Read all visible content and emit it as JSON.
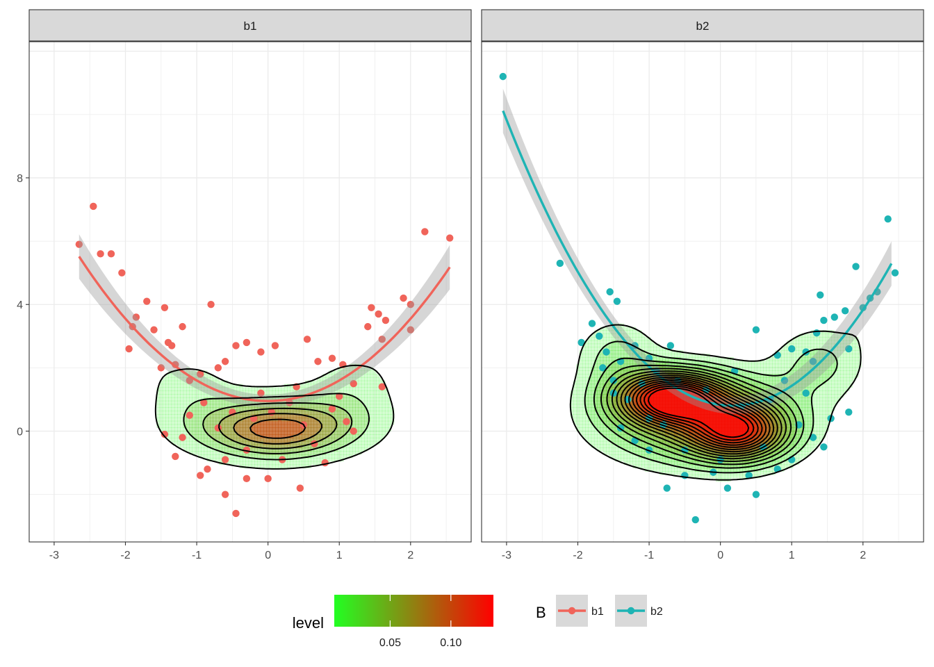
{
  "chart_data": {
    "type": "scatter",
    "subtype": "faceted scatter with filled 2D density contours and quadratic smooth fits",
    "title": "",
    "xlabel": "",
    "ylabel": "",
    "xlim": [
      -3.35,
      2.85
    ],
    "ylim": [
      -3.5,
      12.3
    ],
    "x_ticks": [
      "-3",
      "-2",
      "-1",
      "0",
      "1",
      "2"
    ],
    "x_tick_values": [
      -3,
      -2,
      -1,
      0,
      1,
      2
    ],
    "y_ticks": [
      "0",
      "4",
      "8"
    ],
    "y_tick_values": [
      0,
      4,
      8
    ],
    "grid": true,
    "legend_placement": "bottom",
    "fill_legend": {
      "title": "level",
      "colors": [
        "#22ff22",
        "#ff0000"
      ],
      "range": [
        0.004,
        0.135
      ],
      "labels": [
        "0.05",
        "0.10"
      ],
      "label_values": [
        0.05,
        0.1
      ]
    },
    "color_legend": {
      "title": "B",
      "entries": [
        {
          "label": "b1",
          "color": "#F0645A"
        },
        {
          "label": "b2",
          "color": "#1EB4B4"
        }
      ]
    },
    "panels": [
      {
        "strip": "b1",
        "color": "#F0645A",
        "fit": {
          "x_range": [
            -2.65,
            2.55
          ],
          "coef": [
            0.65,
            0,
            0.95
          ],
          "se_halfwidth": [
            0.2,
            0.7
          ]
        },
        "density_peaks": [
          {
            "x": 0.15,
            "y": -0.05,
            "sx": 0.55,
            "sy": 0.55,
            "w": 0.06
          },
          {
            "x": -0.4,
            "y": 0.2,
            "sx": 0.6,
            "sy": 0.6,
            "w": 0.045
          },
          {
            "x": 0.75,
            "y": 0.3,
            "sx": 0.55,
            "sy": 0.6,
            "w": 0.04
          },
          {
            "x": -1.1,
            "y": 1.3,
            "sx": 0.4,
            "sy": 0.7,
            "w": 0.015
          },
          {
            "x": 1.2,
            "y": 1.4,
            "sx": 0.4,
            "sy": 0.7,
            "w": 0.015
          },
          {
            "x": -1.7,
            "y": 2.8,
            "sx": 0.22,
            "sy": 0.7,
            "w": 0.008
          },
          {
            "x": 1.7,
            "y": 3.0,
            "sx": 0.22,
            "sy": 0.6,
            "w": 0.008
          }
        ],
        "contour_levels": [
          0.01,
          0.027,
          0.044,
          0.061,
          0.078,
          0.095,
          0.112,
          0.129
        ],
        "points": [
          [
            -2.65,
            5.9
          ],
          [
            -2.45,
            7.1
          ],
          [
            -2.35,
            5.6
          ],
          [
            -2.2,
            5.6
          ],
          [
            -2.05,
            5.0
          ],
          [
            -1.95,
            2.6
          ],
          [
            -1.9,
            3.3
          ],
          [
            -1.85,
            3.6
          ],
          [
            -1.7,
            4.1
          ],
          [
            -1.6,
            3.2
          ],
          [
            -1.45,
            3.9
          ],
          [
            -1.4,
            2.8
          ],
          [
            -1.35,
            2.7
          ],
          [
            -1.2,
            3.3
          ],
          [
            -1.5,
            2.0
          ],
          [
            -1.3,
            2.1
          ],
          [
            -1.1,
            1.6
          ],
          [
            -0.95,
            1.8
          ],
          [
            -0.8,
            4.0
          ],
          [
            -0.7,
            2.0
          ],
          [
            -0.6,
            2.2
          ],
          [
            -0.45,
            2.7
          ],
          [
            -0.3,
            2.8
          ],
          [
            -0.1,
            2.5
          ],
          [
            0.1,
            2.7
          ],
          [
            0.55,
            2.9
          ],
          [
            0.7,
            2.2
          ],
          [
            0.9,
            2.3
          ],
          [
            1.05,
            2.1
          ],
          [
            1.2,
            1.5
          ],
          [
            1.4,
            3.3
          ],
          [
            1.45,
            3.9
          ],
          [
            1.55,
            3.7
          ],
          [
            1.6,
            2.9
          ],
          [
            1.65,
            3.5
          ],
          [
            1.6,
            1.4
          ],
          [
            1.9,
            4.2
          ],
          [
            2.0,
            4.0
          ],
          [
            2.0,
            3.2
          ],
          [
            2.2,
            6.3
          ],
          [
            2.55,
            6.1
          ],
          [
            -1.45,
            -0.1
          ],
          [
            -1.3,
            -0.8
          ],
          [
            -0.95,
            -1.4
          ],
          [
            -0.85,
            -1.2
          ],
          [
            -0.6,
            -2.0
          ],
          [
            -0.45,
            -2.6
          ],
          [
            -0.3,
            -1.5
          ],
          [
            0.0,
            -1.5
          ],
          [
            0.45,
            -1.8
          ],
          [
            0.8,
            -1.0
          ],
          [
            -0.7,
            0.1
          ],
          [
            -0.5,
            0.6
          ],
          [
            -0.2,
            0.4
          ],
          [
            0.3,
            0.9
          ],
          [
            0.5,
            0.2
          ],
          [
            0.9,
            0.7
          ],
          [
            1.1,
            0.3
          ],
          [
            -1.1,
            0.5
          ],
          [
            -0.3,
            -0.6
          ],
          [
            0.2,
            -0.9
          ],
          [
            0.65,
            -0.4
          ],
          [
            -0.9,
            0.9
          ],
          [
            -0.1,
            1.2
          ],
          [
            0.4,
            1.4
          ],
          [
            1.0,
            1.1
          ],
          [
            -0.6,
            -0.9
          ],
          [
            0.05,
            0.6
          ],
          [
            -1.2,
            -0.2
          ],
          [
            1.2,
            0.0
          ]
        ]
      },
      {
        "strip": "b2",
        "color": "#1EB4B4",
        "fit": {
          "x_range": [
            -3.05,
            2.4
          ],
          "coef": [
            0.9,
            -0.3,
            0.83
          ],
          "se_halfwidth": [
            0.25,
            0.7
          ]
        },
        "density_peaks": [
          {
            "x": -0.7,
            "y": 1.05,
            "sx": 0.5,
            "sy": 0.55,
            "w": 0.11
          },
          {
            "x": 0.25,
            "y": 0.0,
            "sx": 0.45,
            "sy": 0.6,
            "w": 0.09
          },
          {
            "x": -0.3,
            "y": 0.4,
            "sx": 0.9,
            "sy": 0.95,
            "w": 0.06
          },
          {
            "x": -1.45,
            "y": 2.4,
            "sx": 0.4,
            "sy": 0.8,
            "w": 0.02
          },
          {
            "x": 1.4,
            "y": 2.2,
            "sx": 0.45,
            "sy": 0.8,
            "w": 0.02
          },
          {
            "x": 2.05,
            "y": 3.8,
            "sx": 0.22,
            "sy": 0.7,
            "w": 0.008
          },
          {
            "x": -2.15,
            "y": 4.85,
            "sx": 0.09,
            "sy": 0.18,
            "w": 0.004
          }
        ],
        "contour_levels": [
          0.01,
          0.0185,
          0.027,
          0.0355,
          0.044,
          0.0525,
          0.061,
          0.0695,
          0.078,
          0.0865,
          0.095,
          0.1035,
          0.112,
          0.1205,
          0.129
        ],
        "points": [
          [
            -3.05,
            11.2
          ],
          [
            -2.25,
            5.3
          ],
          [
            -1.95,
            2.8
          ],
          [
            -1.55,
            4.4
          ],
          [
            -1.45,
            4.1
          ],
          [
            -1.8,
            3.4
          ],
          [
            -1.7,
            3.0
          ],
          [
            -1.6,
            2.5
          ],
          [
            -1.4,
            2.2
          ],
          [
            -1.2,
            2.7
          ],
          [
            -1.0,
            2.3
          ],
          [
            -0.7,
            2.7
          ],
          [
            -1.65,
            2.0
          ],
          [
            -1.5,
            1.6
          ],
          [
            -0.9,
            1.9
          ],
          [
            0.5,
            3.2
          ],
          [
            0.8,
            2.4
          ],
          [
            1.0,
            2.6
          ],
          [
            1.2,
            2.5
          ],
          [
            1.3,
            2.2
          ],
          [
            1.35,
            3.1
          ],
          [
            1.45,
            3.5
          ],
          [
            1.4,
            4.3
          ],
          [
            1.6,
            3.6
          ],
          [
            1.75,
            3.8
          ],
          [
            1.8,
            2.6
          ],
          [
            1.9,
            5.2
          ],
          [
            2.0,
            3.9
          ],
          [
            2.1,
            4.2
          ],
          [
            2.2,
            4.4
          ],
          [
            2.35,
            6.7
          ],
          [
            2.45,
            5.0
          ],
          [
            -0.75,
            -1.8
          ],
          [
            -0.35,
            -2.8
          ],
          [
            -0.5,
            -1.4
          ],
          [
            0.1,
            -1.8
          ],
          [
            0.5,
            -2.0
          ],
          [
            0.8,
            -1.2
          ],
          [
            1.0,
            -0.9
          ],
          [
            1.45,
            -0.5
          ],
          [
            -1.0,
            -0.6
          ],
          [
            -1.2,
            -0.3
          ],
          [
            -1.4,
            0.1
          ],
          [
            1.55,
            0.4
          ],
          [
            1.8,
            0.6
          ],
          [
            -1.3,
            1.0
          ],
          [
            0.9,
            1.6
          ],
          [
            1.2,
            1.2
          ],
          [
            -1.0,
            0.4
          ],
          [
            -0.5,
            -0.6
          ],
          [
            0.0,
            -0.9
          ],
          [
            0.6,
            -0.5
          ],
          [
            -0.2,
            1.3
          ],
          [
            0.3,
            0.8
          ],
          [
            -0.8,
            0.2
          ],
          [
            0.7,
            1.0
          ],
          [
            1.1,
            0.2
          ],
          [
            -1.5,
            1.2
          ],
          [
            -0.1,
            -1.3
          ],
          [
            0.4,
            -1.4
          ],
          [
            -0.6,
            1.6
          ],
          [
            0.2,
            1.9
          ],
          [
            1.3,
            -0.2
          ],
          [
            -1.1,
            1.5
          ]
        ]
      }
    ]
  }
}
